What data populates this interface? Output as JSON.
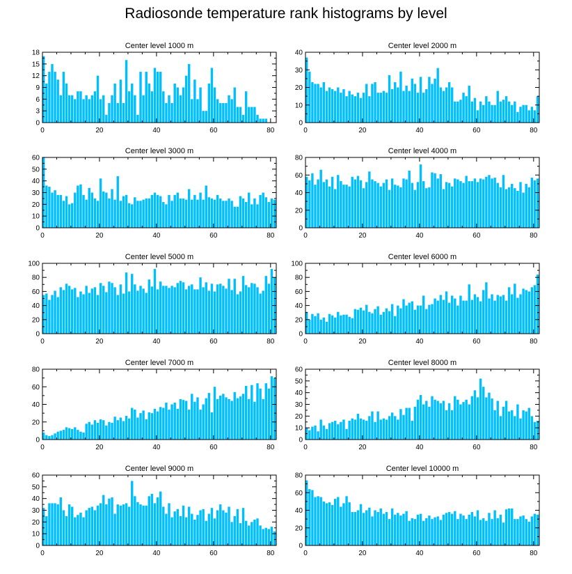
{
  "title": "Radiosonde temperature rank histograms by level",
  "bar_color": "#00bfff",
  "chart_data": [
    {
      "type": "bar",
      "title": "Center level 1000 m",
      "xlim": [
        0,
        82
      ],
      "ylim": [
        0,
        18
      ],
      "xticks": [
        0,
        20,
        40,
        60,
        80
      ],
      "yticks": [
        0,
        3,
        6,
        9,
        12,
        15,
        18
      ],
      "values": [
        17,
        10,
        13,
        15,
        13,
        11,
        7,
        13,
        10,
        7,
        7,
        6,
        8,
        8,
        6,
        7,
        6,
        7,
        8,
        12,
        6,
        7,
        2,
        5,
        7,
        10,
        5,
        11,
        5,
        16,
        8,
        10,
        7,
        2,
        13,
        7,
        13,
        10,
        8,
        14,
        13,
        13,
        8,
        5,
        7,
        5,
        10,
        9,
        7,
        9,
        12,
        15,
        6,
        11,
        6,
        9,
        3,
        3,
        10,
        14,
        9,
        6,
        5,
        5,
        5,
        7,
        6,
        9,
        4,
        4,
        2,
        8,
        4,
        4,
        4,
        2,
        1,
        1,
        1,
        0,
        0,
        0
      ]
    },
    {
      "type": "bar",
      "title": "Center level 2000 m",
      "xlim": [
        0,
        82
      ],
      "ylim": [
        0,
        40
      ],
      "xticks": [
        0,
        20,
        40,
        60,
        80
      ],
      "yticks": [
        0,
        10,
        20,
        30,
        40
      ],
      "values": [
        37,
        29,
        23,
        22,
        22,
        20,
        23,
        18,
        20,
        19,
        18,
        20,
        17,
        19,
        15,
        18,
        16,
        15,
        17,
        14,
        17,
        22,
        15,
        22,
        23,
        17,
        17,
        18,
        17,
        27,
        19,
        23,
        20,
        29,
        18,
        21,
        18,
        25,
        22,
        17,
        26,
        17,
        19,
        26,
        22,
        25,
        31,
        20,
        18,
        20,
        23,
        20,
        12,
        12,
        13,
        17,
        15,
        21,
        12,
        14,
        7,
        12,
        10,
        15,
        12,
        10,
        10,
        18,
        12,
        13,
        15,
        12,
        10,
        12,
        6,
        9,
        10,
        10,
        7,
        9,
        7,
        15
      ]
    },
    {
      "type": "bar",
      "title": "Center level 3000 m",
      "xlim": [
        0,
        82
      ],
      "ylim": [
        0,
        60
      ],
      "xticks": [
        0,
        20,
        40,
        60,
        80
      ],
      "yticks": [
        0,
        10,
        20,
        30,
        40,
        50,
        60
      ],
      "values": [
        60,
        36,
        35,
        30,
        32,
        28,
        28,
        23,
        27,
        20,
        21,
        30,
        36,
        37,
        28,
        24,
        34,
        30,
        25,
        23,
        42,
        31,
        30,
        25,
        33,
        24,
        44,
        23,
        27,
        28,
        21,
        20,
        26,
        23,
        23,
        24,
        25,
        25,
        28,
        30,
        28,
        27,
        22,
        20,
        28,
        23,
        28,
        30,
        25,
        25,
        24,
        33,
        24,
        28,
        24,
        30,
        24,
        36,
        26,
        25,
        24,
        28,
        25,
        23,
        23,
        25,
        23,
        18,
        18,
        27,
        25,
        22,
        30,
        20,
        25,
        20,
        28,
        30,
        26,
        22,
        25,
        24
      ]
    },
    {
      "type": "bar",
      "title": "Center level 4000 m",
      "xlim": [
        0,
        82
      ],
      "ylim": [
        0,
        80
      ],
      "xticks": [
        0,
        20,
        40,
        60,
        80
      ],
      "yticks": [
        0,
        20,
        40,
        60,
        80
      ],
      "values": [
        58,
        54,
        62,
        49,
        55,
        66,
        52,
        55,
        47,
        58,
        44,
        60,
        53,
        49,
        49,
        47,
        58,
        55,
        59,
        54,
        45,
        52,
        64,
        55,
        53,
        51,
        47,
        51,
        55,
        43,
        56,
        49,
        48,
        46,
        56,
        55,
        65,
        51,
        43,
        52,
        72,
        53,
        45,
        46,
        63,
        62,
        56,
        61,
        44,
        52,
        51,
        47,
        56,
        55,
        53,
        51,
        59,
        53,
        53,
        56,
        52,
        56,
        55,
        58,
        60,
        56,
        57,
        51,
        46,
        60,
        44,
        46,
        50,
        45,
        42,
        52,
        40,
        50,
        46,
        57,
        54,
        56
      ]
    },
    {
      "type": "bar",
      "title": "Center level 5000 m",
      "xlim": [
        0,
        82
      ],
      "ylim": [
        0,
        100
      ],
      "xticks": [
        0,
        20,
        40,
        60,
        80
      ],
      "yticks": [
        0,
        20,
        40,
        60,
        80,
        100
      ],
      "values": [
        55,
        57,
        48,
        55,
        61,
        52,
        66,
        62,
        71,
        68,
        63,
        65,
        52,
        60,
        56,
        68,
        58,
        64,
        66,
        55,
        72,
        68,
        59,
        74,
        72,
        66,
        55,
        70,
        57,
        87,
        60,
        85,
        70,
        61,
        68,
        64,
        58,
        77,
        67,
        92,
        63,
        74,
        68,
        68,
        65,
        68,
        66,
        72,
        75,
        73,
        63,
        68,
        70,
        63,
        63,
        80,
        66,
        73,
        61,
        71,
        60,
        70,
        71,
        68,
        64,
        78,
        62,
        78,
        56,
        60,
        82,
        69,
        66,
        72,
        71,
        66,
        57,
        61,
        82,
        71,
        92,
        80
      ]
    },
    {
      "type": "bar",
      "title": "Center level 6000 m",
      "xlim": [
        0,
        82
      ],
      "ylim": [
        0,
        100
      ],
      "xticks": [
        0,
        20,
        40,
        60,
        80
      ],
      "yticks": [
        0,
        20,
        40,
        60,
        80,
        100
      ],
      "values": [
        31,
        20,
        28,
        25,
        29,
        20,
        23,
        17,
        28,
        26,
        23,
        31,
        26,
        27,
        27,
        24,
        22,
        35,
        34,
        37,
        33,
        41,
        31,
        29,
        35,
        39,
        27,
        31,
        36,
        32,
        42,
        25,
        40,
        36,
        49,
        40,
        44,
        46,
        34,
        40,
        40,
        54,
        35,
        41,
        42,
        50,
        47,
        55,
        48,
        60,
        44,
        54,
        50,
        40,
        54,
        47,
        47,
        70,
        48,
        56,
        52,
        46,
        62,
        73,
        50,
        56,
        47,
        55,
        53,
        55,
        47,
        66,
        56,
        71,
        51,
        56,
        64,
        62,
        60,
        66,
        69,
        84
      ]
    },
    {
      "type": "bar",
      "title": "Center level 7000 m",
      "xlim": [
        0,
        82
      ],
      "ylim": [
        0,
        80
      ],
      "xticks": [
        0,
        20,
        40,
        60,
        80
      ],
      "yticks": [
        0,
        20,
        40,
        60,
        80
      ],
      "values": [
        8,
        5,
        4,
        5,
        7,
        9,
        10,
        11,
        14,
        13,
        12,
        14,
        11,
        9,
        8,
        18,
        20,
        17,
        22,
        19,
        23,
        22,
        16,
        20,
        19,
        26,
        22,
        25,
        21,
        27,
        24,
        36,
        34,
        25,
        30,
        33,
        23,
        31,
        30,
        35,
        32,
        37,
        36,
        42,
        34,
        40,
        42,
        35,
        46,
        45,
        44,
        34,
        52,
        43,
        48,
        34,
        40,
        47,
        53,
        31,
        60,
        46,
        50,
        52,
        48,
        46,
        44,
        54,
        47,
        49,
        52,
        61,
        46,
        62,
        43,
        64,
        58,
        46,
        64,
        58,
        72,
        70
      ]
    },
    {
      "type": "bar",
      "title": "Center level 8000 m",
      "xlim": [
        0,
        82
      ],
      "ylim": [
        0,
        60
      ],
      "xticks": [
        0,
        20,
        40,
        60,
        80
      ],
      "yticks": [
        0,
        10,
        20,
        30,
        40,
        50,
        60
      ],
      "values": [
        10,
        8,
        11,
        12,
        7,
        17,
        12,
        9,
        14,
        15,
        16,
        13,
        15,
        17,
        9,
        16,
        18,
        17,
        22,
        18,
        17,
        16,
        20,
        24,
        15,
        24,
        17,
        18,
        17,
        20,
        23,
        20,
        17,
        26,
        21,
        27,
        27,
        16,
        28,
        34,
        38,
        30,
        33,
        28,
        37,
        34,
        33,
        31,
        33,
        25,
        31,
        25,
        37,
        34,
        30,
        32,
        34,
        30,
        37,
        42,
        36,
        52,
        45,
        36,
        40,
        35,
        25,
        33,
        20,
        28,
        33,
        24,
        25,
        20,
        30,
        18,
        25,
        24,
        27,
        20,
        15,
        16
      ]
    },
    {
      "type": "bar",
      "title": "Center level 9000 m",
      "xlim": [
        0,
        82
      ],
      "ylim": [
        0,
        60
      ],
      "xticks": [
        0,
        20,
        40,
        60,
        80
      ],
      "yticks": [
        0,
        10,
        20,
        30,
        40,
        50,
        60
      ],
      "values": [
        32,
        25,
        36,
        36,
        36,
        35,
        41,
        30,
        25,
        35,
        33,
        24,
        26,
        28,
        24,
        30,
        32,
        33,
        30,
        34,
        36,
        43,
        35,
        40,
        41,
        27,
        35,
        34,
        35,
        36,
        33,
        55,
        42,
        37,
        35,
        34,
        34,
        42,
        44,
        36,
        41,
        46,
        33,
        27,
        36,
        24,
        29,
        31,
        25,
        34,
        24,
        33,
        27,
        22,
        26,
        30,
        31,
        21,
        27,
        32,
        23,
        30,
        35,
        30,
        28,
        33,
        20,
        25,
        31,
        19,
        32,
        21,
        17,
        20,
        22,
        23,
        17,
        14,
        15,
        14,
        16,
        12
      ]
    },
    {
      "type": "bar",
      "title": "Center level 10000 m",
      "xlim": [
        0,
        82
      ],
      "ylim": [
        0,
        80
      ],
      "xticks": [
        0,
        20,
        40,
        60,
        80
      ],
      "yticks": [
        0,
        20,
        40,
        60,
        80
      ],
      "values": [
        74,
        64,
        63,
        55,
        56,
        55,
        50,
        48,
        49,
        46,
        53,
        55,
        44,
        48,
        56,
        49,
        38,
        38,
        40,
        47,
        37,
        40,
        43,
        33,
        40,
        38,
        42,
        36,
        38,
        30,
        42,
        35,
        37,
        34,
        36,
        39,
        28,
        31,
        30,
        35,
        36,
        28,
        31,
        34,
        30,
        32,
        33,
        29,
        35,
        37,
        38,
        36,
        39,
        30,
        36,
        34,
        30,
        35,
        38,
        33,
        40,
        29,
        31,
        28,
        37,
        30,
        40,
        31,
        35,
        26,
        41,
        42,
        42,
        30,
        30,
        33,
        34,
        30,
        27,
        33,
        36,
        35
      ]
    }
  ]
}
